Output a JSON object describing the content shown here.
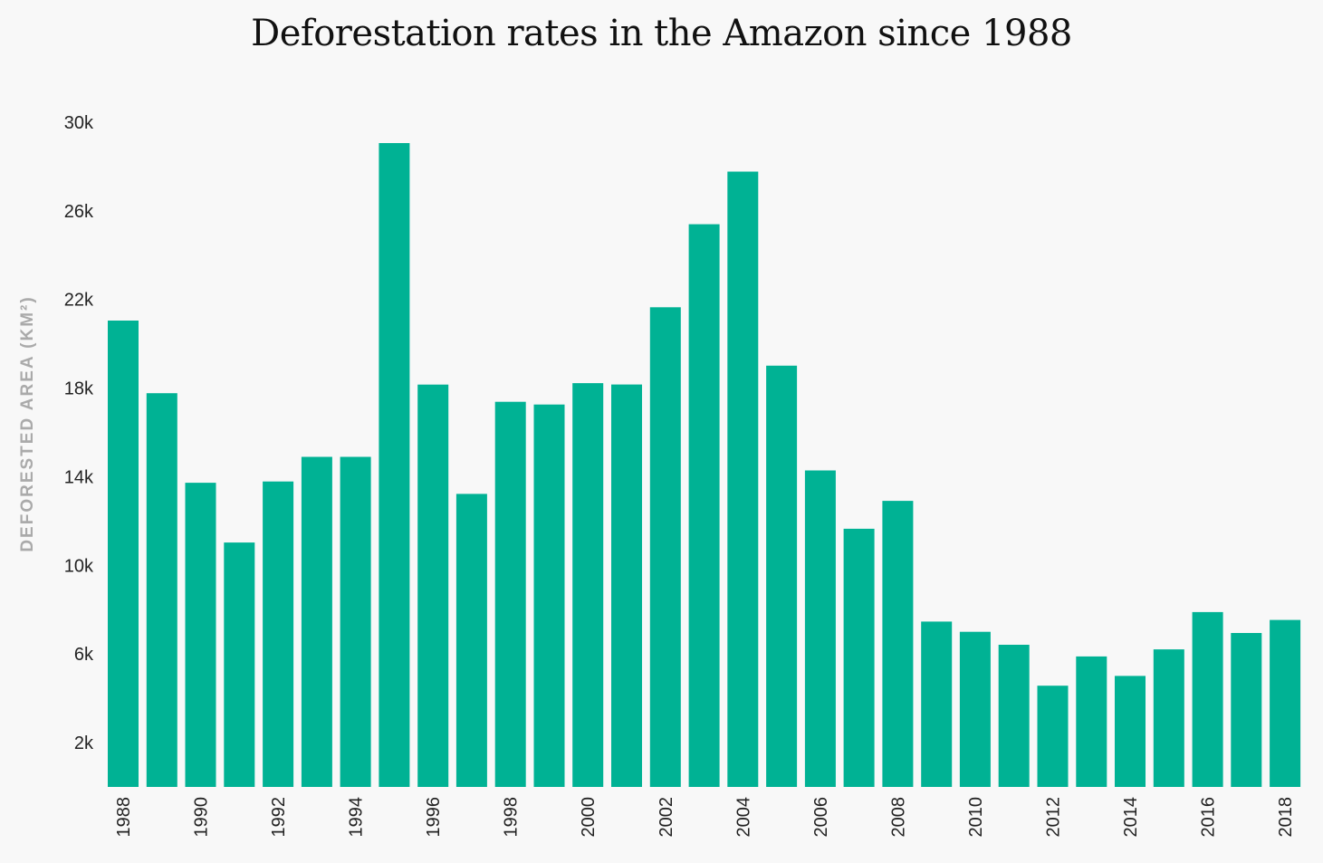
{
  "colors": {
    "bar": "#00b294",
    "background": "#f8f8f8"
  },
  "chart_data": {
    "type": "bar",
    "title": "Deforestation rates in the Amazon since 1988",
    "xlabel": "",
    "ylabel": "DEFORESTED AREA (KM²)",
    "ylim": [
      0,
      30000
    ],
    "yticks": [
      2000,
      6000,
      10000,
      14000,
      18000,
      22000,
      26000,
      30000
    ],
    "ytick_labels": [
      "2k",
      "6k",
      "10k",
      "14k",
      "18k",
      "22k",
      "26k",
      "30k"
    ],
    "categories": [
      "1988",
      "1989",
      "1990",
      "1991",
      "1992",
      "1993",
      "1994",
      "1995",
      "1996",
      "1997",
      "1998",
      "1999",
      "2000",
      "2001",
      "2002",
      "2003",
      "2004",
      "2005",
      "2006",
      "2007",
      "2008",
      "2009",
      "2010",
      "2011",
      "2012",
      "2013",
      "2014",
      "2015",
      "2016",
      "2017",
      "2018"
    ],
    "xtick_labels": [
      "1988",
      "",
      "1990",
      "",
      "1992",
      "",
      "1994",
      "",
      "1996",
      "",
      "1998",
      "",
      "2000",
      "",
      "2002",
      "",
      "2004",
      "",
      "2006",
      "",
      "2008",
      "",
      "2010",
      "",
      "2012",
      "",
      "2014",
      "",
      "2016",
      "",
      "2018"
    ],
    "values": [
      21050,
      17770,
      13730,
      11030,
      13786,
      14896,
      14896,
      29059,
      18161,
      13227,
      17383,
      17259,
      18226,
      18165,
      21651,
      25396,
      27772,
      19014,
      14286,
      11651,
      12911,
      7464,
      7000,
      6418,
      4571,
      5891,
      5012,
      6207,
      7893,
      6947,
      7536
    ],
    "grid": false,
    "legend": "none"
  }
}
